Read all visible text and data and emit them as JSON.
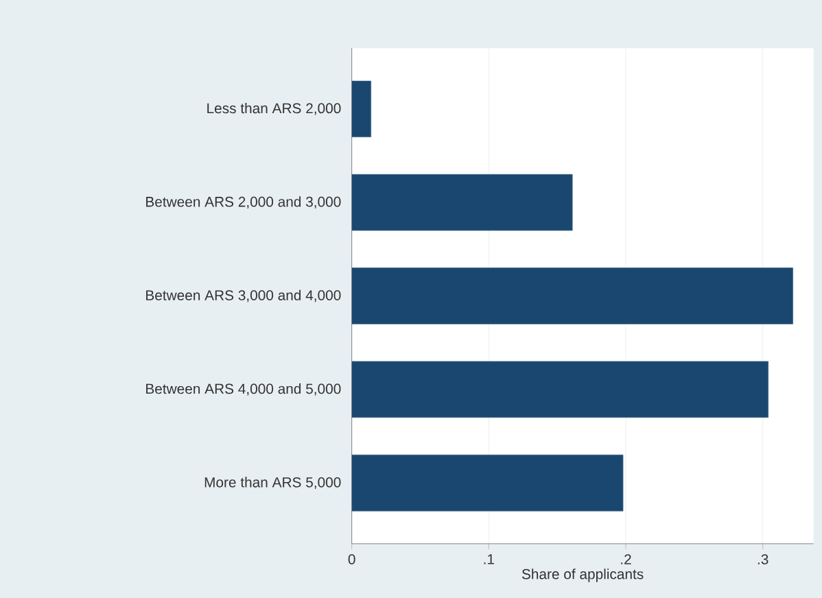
{
  "chart_data": {
    "type": "bar",
    "orientation": "horizontal",
    "categories": [
      "Less than ARS 2,000",
      "Between ARS 2,000 and 3,000",
      "Between ARS 3,000 and 4,000",
      "Between ARS 4,000 and 5,000",
      "More than ARS 5,000"
    ],
    "values": [
      0.014,
      0.161,
      0.322,
      0.304,
      0.198
    ],
    "color": "#1a476f",
    "xlim": [
      0,
      0.337
    ],
    "xticks": [
      0,
      {
        "value": 0.1,
        "label": ".1"
      },
      {
        "value": 0.2,
        "label": ".2"
      },
      {
        "value": 0.3,
        "label": ".3"
      }
    ],
    "xlabel": "Share of applicants",
    "grid": "x"
  }
}
